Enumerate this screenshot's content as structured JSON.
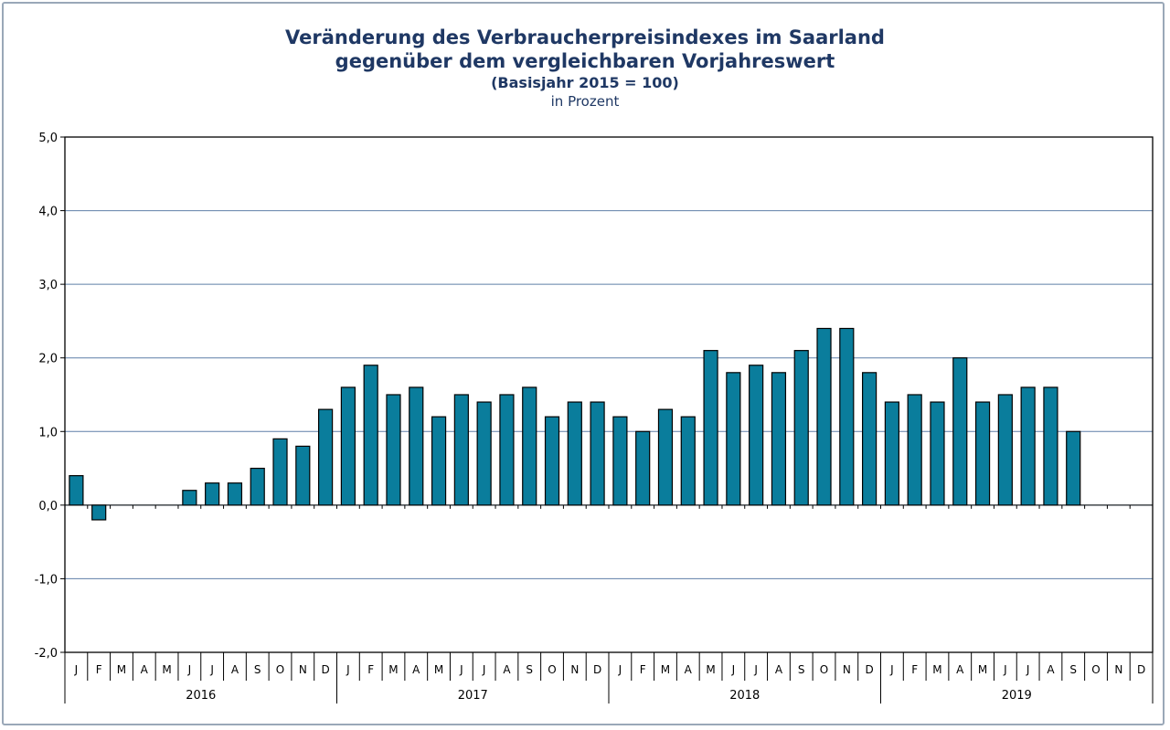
{
  "chart_data": {
    "type": "bar",
    "title": "Veränderung des Verbraucherpreisindexes im Saarland",
    "subtitle_line2": "gegenüber dem vergleichbaren Vorjahreswert",
    "subtitle_line3": "(Basisjahr 2015 = 100)",
    "unit_label": "in Prozent",
    "ylim": [
      -2.0,
      5.0
    ],
    "yticks": [
      "5,0",
      "4,0",
      "3,0",
      "2,0",
      "1,0",
      "0,0",
      "-1,0",
      "-2,0"
    ],
    "ytick_values": [
      5,
      4,
      3,
      2,
      1,
      0,
      -1,
      -2
    ],
    "grid": true,
    "bar_color": "#0a7d9c",
    "month_labels": [
      "J",
      "F",
      "M",
      "A",
      "M",
      "J",
      "J",
      "A",
      "S",
      "O",
      "N",
      "D"
    ],
    "years": [
      "2016",
      "2017",
      "2018",
      "2019"
    ],
    "values": [
      0.4,
      -0.2,
      null,
      null,
      null,
      0.2,
      0.3,
      0.3,
      0.5,
      0.9,
      0.8,
      1.3,
      1.6,
      1.9,
      1.5,
      1.6,
      1.2,
      1.5,
      1.4,
      1.5,
      1.6,
      1.2,
      1.4,
      1.4,
      1.2,
      1.0,
      1.3,
      1.2,
      2.1,
      1.8,
      1.9,
      1.8,
      2.1,
      2.4,
      2.4,
      1.8,
      1.4,
      1.5,
      1.4,
      2.0,
      1.4,
      1.5,
      1.6,
      1.6,
      1.0,
      null,
      null,
      null
    ]
  }
}
